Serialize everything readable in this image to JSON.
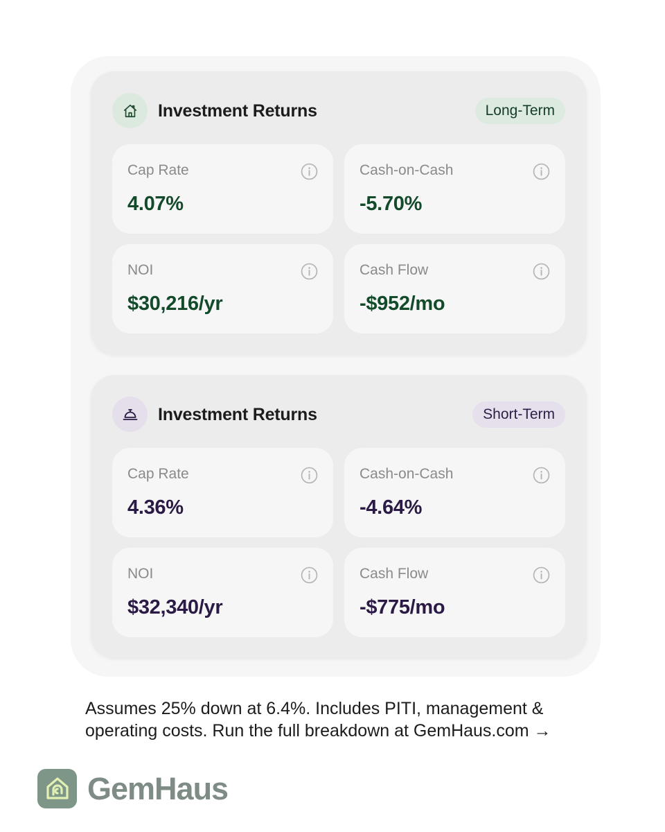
{
  "cards": [
    {
      "title": "Investment Returns",
      "badge": "Long-Term",
      "icon": "house-icon",
      "metrics": [
        {
          "label": "Cap Rate",
          "value": "4.07%"
        },
        {
          "label": "Cash-on-Cash",
          "value": "-5.70%"
        },
        {
          "label": "NOI",
          "value": "$30,216/yr"
        },
        {
          "label": "Cash Flow",
          "value": "-$952/mo"
        }
      ]
    },
    {
      "title": "Investment Returns",
      "badge": "Short-Term",
      "icon": "service-bell-icon",
      "metrics": [
        {
          "label": "Cap Rate",
          "value": "4.36%"
        },
        {
          "label": "Cash-on-Cash",
          "value": "-4.64%"
        },
        {
          "label": "NOI",
          "value": "$32,340/yr"
        },
        {
          "label": "Cash Flow",
          "value": "-$775/mo"
        }
      ]
    }
  ],
  "footnote": {
    "line1": "Assumes 25% down at 6.4%. Includes PITI, management &",
    "line2": "operating costs. Run the full breakdown at GemHaus.com →"
  },
  "brand": {
    "name": "GemHaus",
    "logo_icon": "gemhaus-logo-icon"
  },
  "colors": {
    "long_term_accent": "#124a2a",
    "short_term_accent": "#2a1a45",
    "brand_green": "#7d9687"
  }
}
